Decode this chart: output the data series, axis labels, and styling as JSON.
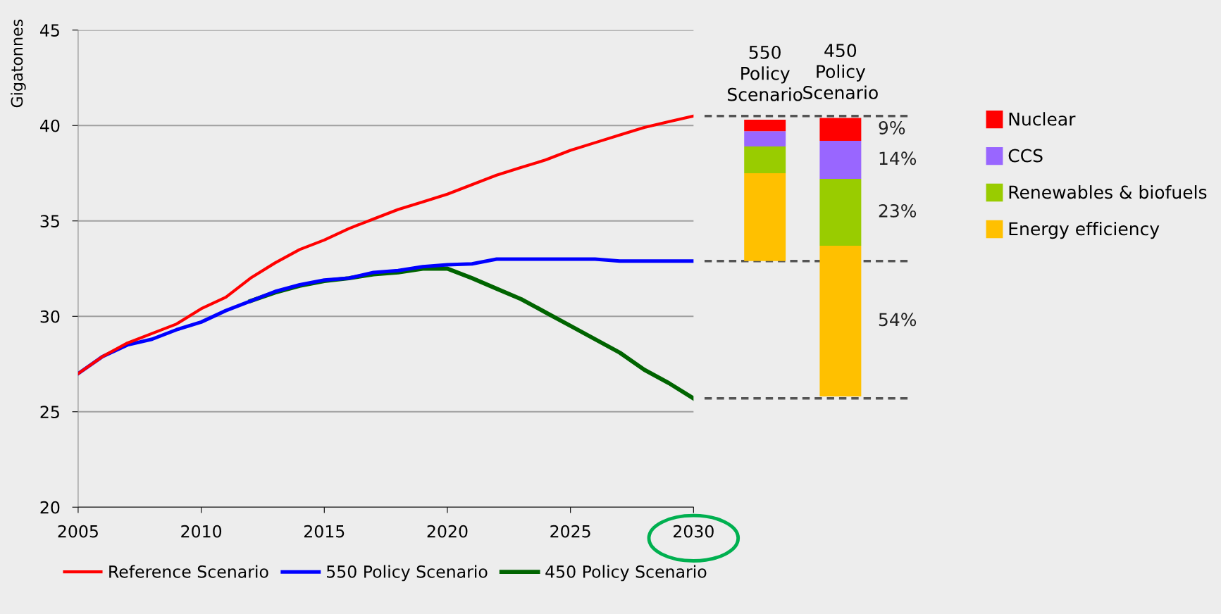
{
  "chart_data": [
    {
      "type": "line",
      "ylabel": "Gigatonnes",
      "x": [
        2005,
        2006,
        2007,
        2008,
        2009,
        2010,
        2011,
        2012,
        2013,
        2014,
        2015,
        2016,
        2017,
        2018,
        2019,
        2020,
        2021,
        2022,
        2023,
        2024,
        2025,
        2026,
        2027,
        2028,
        2029,
        2030
      ],
      "series": [
        {
          "name": "Reference Scenario",
          "color": "#ff0000",
          "values": [
            27.0,
            27.9,
            28.6,
            29.1,
            29.6,
            30.4,
            31.0,
            32.0,
            32.8,
            33.5,
            34.0,
            34.6,
            35.1,
            35.6,
            36.0,
            36.4,
            36.9,
            37.4,
            37.8,
            38.2,
            38.7,
            39.1,
            39.5,
            39.9,
            40.2,
            40.5
          ]
        },
        {
          "name": "550 Policy Scenario",
          "color": "#0000ff",
          "values": [
            27.0,
            27.9,
            28.5,
            28.8,
            29.3,
            29.7,
            30.3,
            30.8,
            31.3,
            31.65,
            31.9,
            32.0,
            32.3,
            32.4,
            32.6,
            32.7,
            32.75,
            33.0,
            33.0,
            33.0,
            33.0,
            33.0,
            32.9,
            32.9,
            32.9,
            32.9
          ]
        },
        {
          "name": "450 Policy Scenario",
          "color": "#006400",
          "values": [
            null,
            null,
            null,
            null,
            null,
            null,
            null,
            30.8,
            31.25,
            31.6,
            31.85,
            32.0,
            32.2,
            32.3,
            32.5,
            32.5,
            32.0,
            31.45,
            30.9,
            30.2,
            29.5,
            28.8,
            28.1,
            27.2,
            26.5,
            25.7
          ]
        }
      ],
      "xlim": [
        2005,
        2030
      ],
      "xticks": [
        2005,
        2010,
        2015,
        2020,
        2025,
        2030
      ],
      "ylim": [
        20,
        45
      ],
      "yticks": [
        20,
        25,
        30,
        35,
        40,
        45
      ],
      "grid": "y",
      "legend": "bottom",
      "line_style": "solid",
      "marker": "none"
    },
    {
      "type": "bar",
      "categories": [
        "550 Policy Scenario",
        "450 Policy Scenario"
      ],
      "ylim": [
        20,
        45
      ],
      "yticks": [
        20,
        25,
        30,
        35,
        40,
        45
      ],
      "tick_labels": "x",
      "legend": "right",
      "annotations": [
        "9%",
        "14%",
        "23%",
        "54%"
      ],
      "series": [
        {
          "name": "Energy efficiency",
          "color": "#ffc000",
          "base": [
            32.9,
            25.8
          ],
          "values": [
            4.6,
            7.9
          ]
        },
        {
          "name": "Renewables & biofuels",
          "color": "#99cc00",
          "base": [
            37.5,
            33.7
          ],
          "values": [
            1.4,
            3.5
          ]
        },
        {
          "name": "CCS",
          "color": "#9966ff",
          "base": [
            38.9,
            37.2
          ],
          "values": [
            0.8,
            2.0
          ]
        },
        {
          "name": "Nuclear",
          "color": "#ff0000",
          "base": [
            39.7,
            39.2
          ],
          "values": [
            0.6,
            1.2
          ]
        }
      ],
      "ref_lines": [
        {
          "axis": "y",
          "value": 40.5,
          "color": "#555555",
          "line_style": "dashed"
        },
        {
          "axis": "y",
          "value": 32.9,
          "color": "#555555",
          "line_style": "dashed"
        },
        {
          "axis": "y",
          "value": 25.7,
          "color": "#555555",
          "line_style": "dashed"
        }
      ]
    }
  ]
}
